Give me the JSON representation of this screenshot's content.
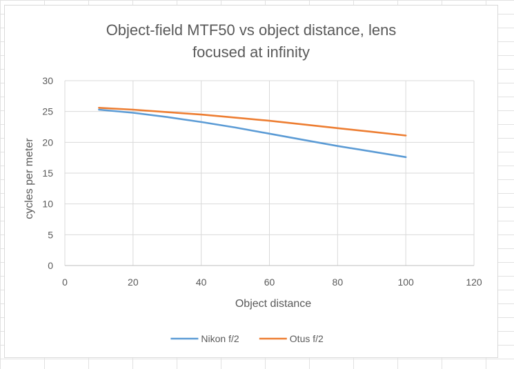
{
  "chart_data": {
    "type": "line",
    "title_lines": [
      "Object-field MTF50 vs object distance, lens",
      "focused at infinity"
    ],
    "xlabel": "Object distance",
    "ylabel": "cycles per meter",
    "xlim": [
      0,
      120
    ],
    "ylim": [
      0,
      30
    ],
    "x_ticks": [
      "0",
      "20",
      "40",
      "60",
      "80",
      "100",
      "120"
    ],
    "y_ticks": [
      "0",
      "5",
      "10",
      "15",
      "20",
      "25",
      "30"
    ],
    "grid": true,
    "legend_position": "bottom",
    "series": [
      {
        "name": "Nikon f/2",
        "color": "#5b9bd5",
        "x": [
          10,
          20,
          30,
          40,
          50,
          60,
          70,
          80,
          90,
          100
        ],
        "y": [
          25.3,
          24.8,
          24.1,
          23.3,
          22.4,
          21.4,
          20.4,
          19.4,
          18.5,
          17.6
        ]
      },
      {
        "name": "Otus f/2",
        "color": "#ed7d31",
        "x": [
          10,
          20,
          30,
          40,
          50,
          60,
          70,
          80,
          90,
          100
        ],
        "y": [
          25.6,
          25.3,
          24.9,
          24.5,
          24.0,
          23.5,
          22.9,
          22.3,
          21.7,
          21.1
        ]
      }
    ]
  }
}
